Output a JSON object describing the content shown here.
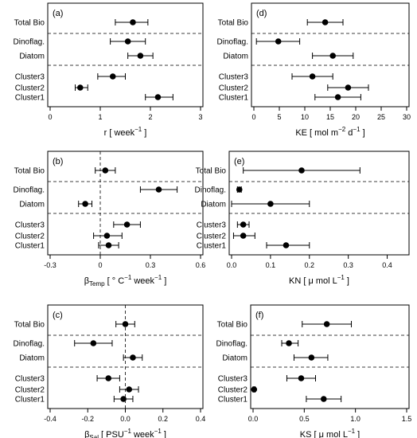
{
  "chart_data": [
    {
      "type": "scatter",
      "panel_label": "(a)",
      "xlabel_parts": [
        [
          "r [ week",
          "base"
        ],
        [
          "−1",
          "sup"
        ],
        [
          " ]",
          "base"
        ]
      ],
      "xlim": [
        0,
        3
      ],
      "xticks": [
        0,
        1,
        2,
        3
      ],
      "xtick_labels": [
        "0",
        "1",
        "2",
        "3"
      ],
      "zero_line": false,
      "rows": [
        {
          "label": "Total Bio",
          "estimate": 1.65,
          "lower": 1.3,
          "upper": 1.95
        },
        {
          "label": "Dinoflag.",
          "estimate": 1.55,
          "lower": 1.2,
          "upper": 1.9
        },
        {
          "label": "Diatom",
          "estimate": 1.8,
          "lower": 1.55,
          "upper": 2.05
        },
        {
          "label": "Cluster3",
          "estimate": 1.25,
          "lower": 0.95,
          "upper": 1.5
        },
        {
          "label": "Cluster2",
          "estimate": 0.6,
          "lower": 0.5,
          "upper": 0.75
        },
        {
          "label": "Cluster1",
          "estimate": 2.15,
          "lower": 1.9,
          "upper": 2.45
        }
      ]
    },
    {
      "type": "scatter",
      "panel_label": "(d)",
      "xlabel_parts": [
        [
          "KE [ mol m",
          "base"
        ],
        [
          "−2",
          "sup"
        ],
        [
          " d",
          "base"
        ],
        [
          "−1",
          "sup"
        ],
        [
          " ]",
          "base"
        ]
      ],
      "xlim": [
        0,
        30
      ],
      "xticks": [
        0,
        5,
        10,
        15,
        20,
        25,
        30
      ],
      "xtick_labels": [
        "0",
        "5",
        "10",
        "15",
        "20",
        "25",
        "30"
      ],
      "zero_line": false,
      "rows": [
        {
          "label": "Total Bio",
          "estimate": 14,
          "lower": 10.5,
          "upper": 17.5
        },
        {
          "label": "Dinoflag.",
          "estimate": 4.8,
          "lower": 0.5,
          "upper": 9
        },
        {
          "label": "Diatom",
          "estimate": 15.5,
          "lower": 11.5,
          "upper": 19.5
        },
        {
          "label": "Cluster3",
          "estimate": 11.5,
          "lower": 7.5,
          "upper": 15.5
        },
        {
          "label": "Cluster2",
          "estimate": 18.5,
          "lower": 14.5,
          "upper": 22.5
        },
        {
          "label": "Cluster1",
          "estimate": 16.5,
          "lower": 12,
          "upper": 21
        }
      ]
    },
    {
      "type": "scatter",
      "panel_label": "(b)",
      "xlabel_parts": [
        [
          "β",
          "base"
        ],
        [
          "Temp",
          "sub"
        ],
        [
          " [ ° C",
          "base"
        ],
        [
          "−1",
          "sup"
        ],
        [
          " week",
          "base"
        ],
        [
          "−1",
          "sup"
        ],
        [
          " ]",
          "base"
        ]
      ],
      "xlim": [
        -0.3,
        0.6
      ],
      "xticks": [
        -0.3,
        0,
        0.3,
        0.6
      ],
      "xtick_labels": [
        "-0.3",
        "0",
        "0.3",
        "0.6"
      ],
      "zero_line": true,
      "rows": [
        {
          "label": "Total Bio",
          "estimate": 0.03,
          "lower": -0.03,
          "upper": 0.09
        },
        {
          "label": "Dinoflag.",
          "estimate": 0.35,
          "lower": 0.24,
          "upper": 0.46
        },
        {
          "label": "Diatom",
          "estimate": -0.09,
          "lower": -0.13,
          "upper": -0.05
        },
        {
          "label": "Cluster3",
          "estimate": 0.16,
          "lower": 0.08,
          "upper": 0.24
        },
        {
          "label": "Cluster2",
          "estimate": 0.04,
          "lower": -0.04,
          "upper": 0.13
        },
        {
          "label": "Cluster1",
          "estimate": 0.05,
          "lower": -0.01,
          "upper": 0.11
        }
      ]
    },
    {
      "type": "scatter",
      "panel_label": "(e)",
      "xlabel_parts": [
        [
          "KN [ μ mol L",
          "base"
        ],
        [
          "−1",
          "sup"
        ],
        [
          " ]",
          "base"
        ]
      ],
      "xlim": [
        0,
        0.45
      ],
      "xticks": [
        0,
        0.1,
        0.2,
        0.3,
        0.4
      ],
      "xtick_labels": [
        "0.0",
        "0.1",
        "0.2",
        "0.3",
        "0.4"
      ],
      "zero_line": false,
      "rows": [
        {
          "label": "Total Bio",
          "estimate": 0.18,
          "lower": 0.03,
          "upper": 0.33
        },
        {
          "label": "Dinoflag.",
          "estimate": 0.02,
          "lower": 0.015,
          "upper": 0.025
        },
        {
          "label": "Diatom",
          "estimate": 0.1,
          "lower": 0.0,
          "upper": 0.2
        },
        {
          "label": "Cluster3",
          "estimate": 0.03,
          "lower": 0.015,
          "upper": 0.045
        },
        {
          "label": "Cluster2",
          "estimate": 0.03,
          "lower": 0.005,
          "upper": 0.06
        },
        {
          "label": "Cluster1",
          "estimate": 0.14,
          "lower": 0.09,
          "upper": 0.2
        }
      ]
    },
    {
      "type": "scatter",
      "panel_label": "(c)",
      "xlabel_parts": [
        [
          "β",
          "base"
        ],
        [
          "Sal",
          "sub"
        ],
        [
          " [ PSU",
          "base"
        ],
        [
          "−1",
          "sup"
        ],
        [
          " week",
          "base"
        ],
        [
          "−1",
          "sup"
        ],
        [
          " ]",
          "base"
        ]
      ],
      "xlim": [
        -0.4,
        0.4
      ],
      "xticks": [
        -0.4,
        -0.2,
        0,
        0.2,
        0.4
      ],
      "xtick_labels": [
        "-0.4",
        "-0.2",
        "0.0",
        "0.2",
        "0.4"
      ],
      "zero_line": true,
      "rows": [
        {
          "label": "Total Bio",
          "estimate": 0.0,
          "lower": -0.05,
          "upper": 0.05
        },
        {
          "label": "Dinoflag.",
          "estimate": -0.17,
          "lower": -0.27,
          "upper": -0.07
        },
        {
          "label": "Diatom",
          "estimate": 0.04,
          "lower": -0.01,
          "upper": 0.09
        },
        {
          "label": "Cluster3",
          "estimate": -0.09,
          "lower": -0.15,
          "upper": -0.03
        },
        {
          "label": "Cluster2",
          "estimate": 0.02,
          "lower": -0.03,
          "upper": 0.07
        },
        {
          "label": "Cluster1",
          "estimate": -0.01,
          "lower": -0.06,
          "upper": 0.04
        }
      ]
    },
    {
      "type": "scatter",
      "panel_label": "(f)",
      "xlabel_parts": [
        [
          "KS [ μ mol L",
          "base"
        ],
        [
          "−1",
          "sup"
        ],
        [
          " ]",
          "base"
        ]
      ],
      "xlim": [
        0,
        1.5
      ],
      "xticks": [
        0,
        0.5,
        1,
        1.5
      ],
      "xtick_labels": [
        "0.0",
        "0.5",
        "1.0",
        "1.5"
      ],
      "zero_line": false,
      "rows": [
        {
          "label": "Total Bio",
          "estimate": 0.72,
          "lower": 0.48,
          "upper": 0.96
        },
        {
          "label": "Dinoflag.",
          "estimate": 0.35,
          "lower": 0.28,
          "upper": 0.44
        },
        {
          "label": "Diatom",
          "estimate": 0.57,
          "lower": 0.4,
          "upper": 0.73
        },
        {
          "label": "Cluster3",
          "estimate": 0.47,
          "lower": 0.33,
          "upper": 0.61
        },
        {
          "label": "Cluster2",
          "estimate": 0.01,
          "lower": 0.0,
          "upper": 0.02
        },
        {
          "label": "Cluster1",
          "estimate": 0.69,
          "lower": 0.52,
          "upper": 0.86
        }
      ]
    }
  ]
}
